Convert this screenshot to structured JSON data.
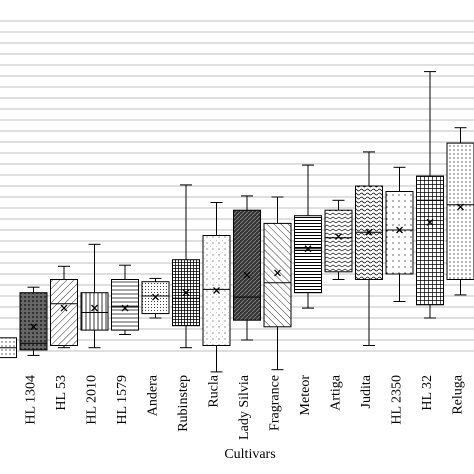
{
  "chart_data": {
    "type": "box",
    "x_label": "Cultivars",
    "categories": [
      null,
      "HL 1304",
      "HL 53",
      "HL 2010",
      "HL 1579",
      "Andera",
      "Rubinstep",
      "Rucla",
      "Lady Silvia",
      "Fragrance",
      "Meteor",
      "Artiga",
      "Judita",
      "HL 2350",
      "HL 32",
      "Reluga"
    ],
    "boxes": [
      {
        "min": null,
        "q1": 0.4,
        "median": 1.3,
        "q3": 2.2,
        "max": null,
        "mean": null
      },
      {
        "min": 0.6,
        "q1": 1.1,
        "median": 1.7,
        "q3": 6.3,
        "max": 6.8,
        "mean": 3.2
      },
      {
        "min": 1.3,
        "q1": 1.5,
        "median": 5.3,
        "q3": 7.5,
        "max": 8.7,
        "mean": 4.9
      },
      {
        "min": 1.3,
        "q1": 2.9,
        "median": 4.5,
        "q3": 6.3,
        "max": 10.7,
        "mean": 4.9
      },
      {
        "min": 2.5,
        "q1": 2.9,
        "median": 5.0,
        "q3": 7.5,
        "max": 8.8,
        "mean": 4.9
      },
      {
        "min": 4.0,
        "q1": 4.4,
        "median": 6.0,
        "q3": 7.3,
        "max": 7.6,
        "mean": 5.9
      },
      {
        "min": 1.3,
        "q1": 3.3,
        "median": 5.8,
        "q3": 9.3,
        "max": 16.1,
        "mean": 6.3
      },
      {
        "min": -0.9,
        "q1": 1.5,
        "median": 6.6,
        "q3": 11.5,
        "max": 14.5,
        "mean": 6.5
      },
      {
        "min": 2.0,
        "q1": 3.8,
        "median": 5.9,
        "q3": 13.8,
        "max": 15.1,
        "mean": 7.9
      },
      {
        "min": -0.7,
        "q1": 3.2,
        "median": 7.2,
        "q3": 12.6,
        "max": 15.0,
        "mean": 8.1
      },
      {
        "min": 4.9,
        "q1": 6.3,
        "median": 10.3,
        "q3": 13.3,
        "max": 17.9,
        "mean": 10.3
      },
      {
        "min": 7.5,
        "q1": 8.2,
        "median": 11.3,
        "q3": 13.8,
        "max": 14.7,
        "mean": 11.4
      },
      {
        "min": 1.5,
        "q1": 7.5,
        "median": 11.8,
        "q3": 16.0,
        "max": 19.1,
        "mean": 11.8
      },
      {
        "min": 5.5,
        "q1": 8.0,
        "median": 12.0,
        "q3": 15.5,
        "max": 17.7,
        "mean": 12.0
      },
      {
        "min": 4.0,
        "q1": 5.2,
        "median": 14.7,
        "q3": 16.9,
        "max": 26.4,
        "mean": 12.7
      },
      {
        "min": 6.1,
        "q1": 7.5,
        "median": 14.3,
        "q3": 19.9,
        "max": 21.3,
        "mean": 14.1
      }
    ],
    "ylim": [
      -1,
      32
    ],
    "yticks": [
      1,
      2,
      3,
      4,
      5,
      6,
      7,
      8,
      9,
      10,
      11,
      12,
      13,
      14,
      15,
      16,
      17,
      18,
      19,
      20,
      21,
      22,
      23,
      24,
      25,
      26,
      27,
      28,
      29,
      30,
      31
    ],
    "grid": true
  }
}
